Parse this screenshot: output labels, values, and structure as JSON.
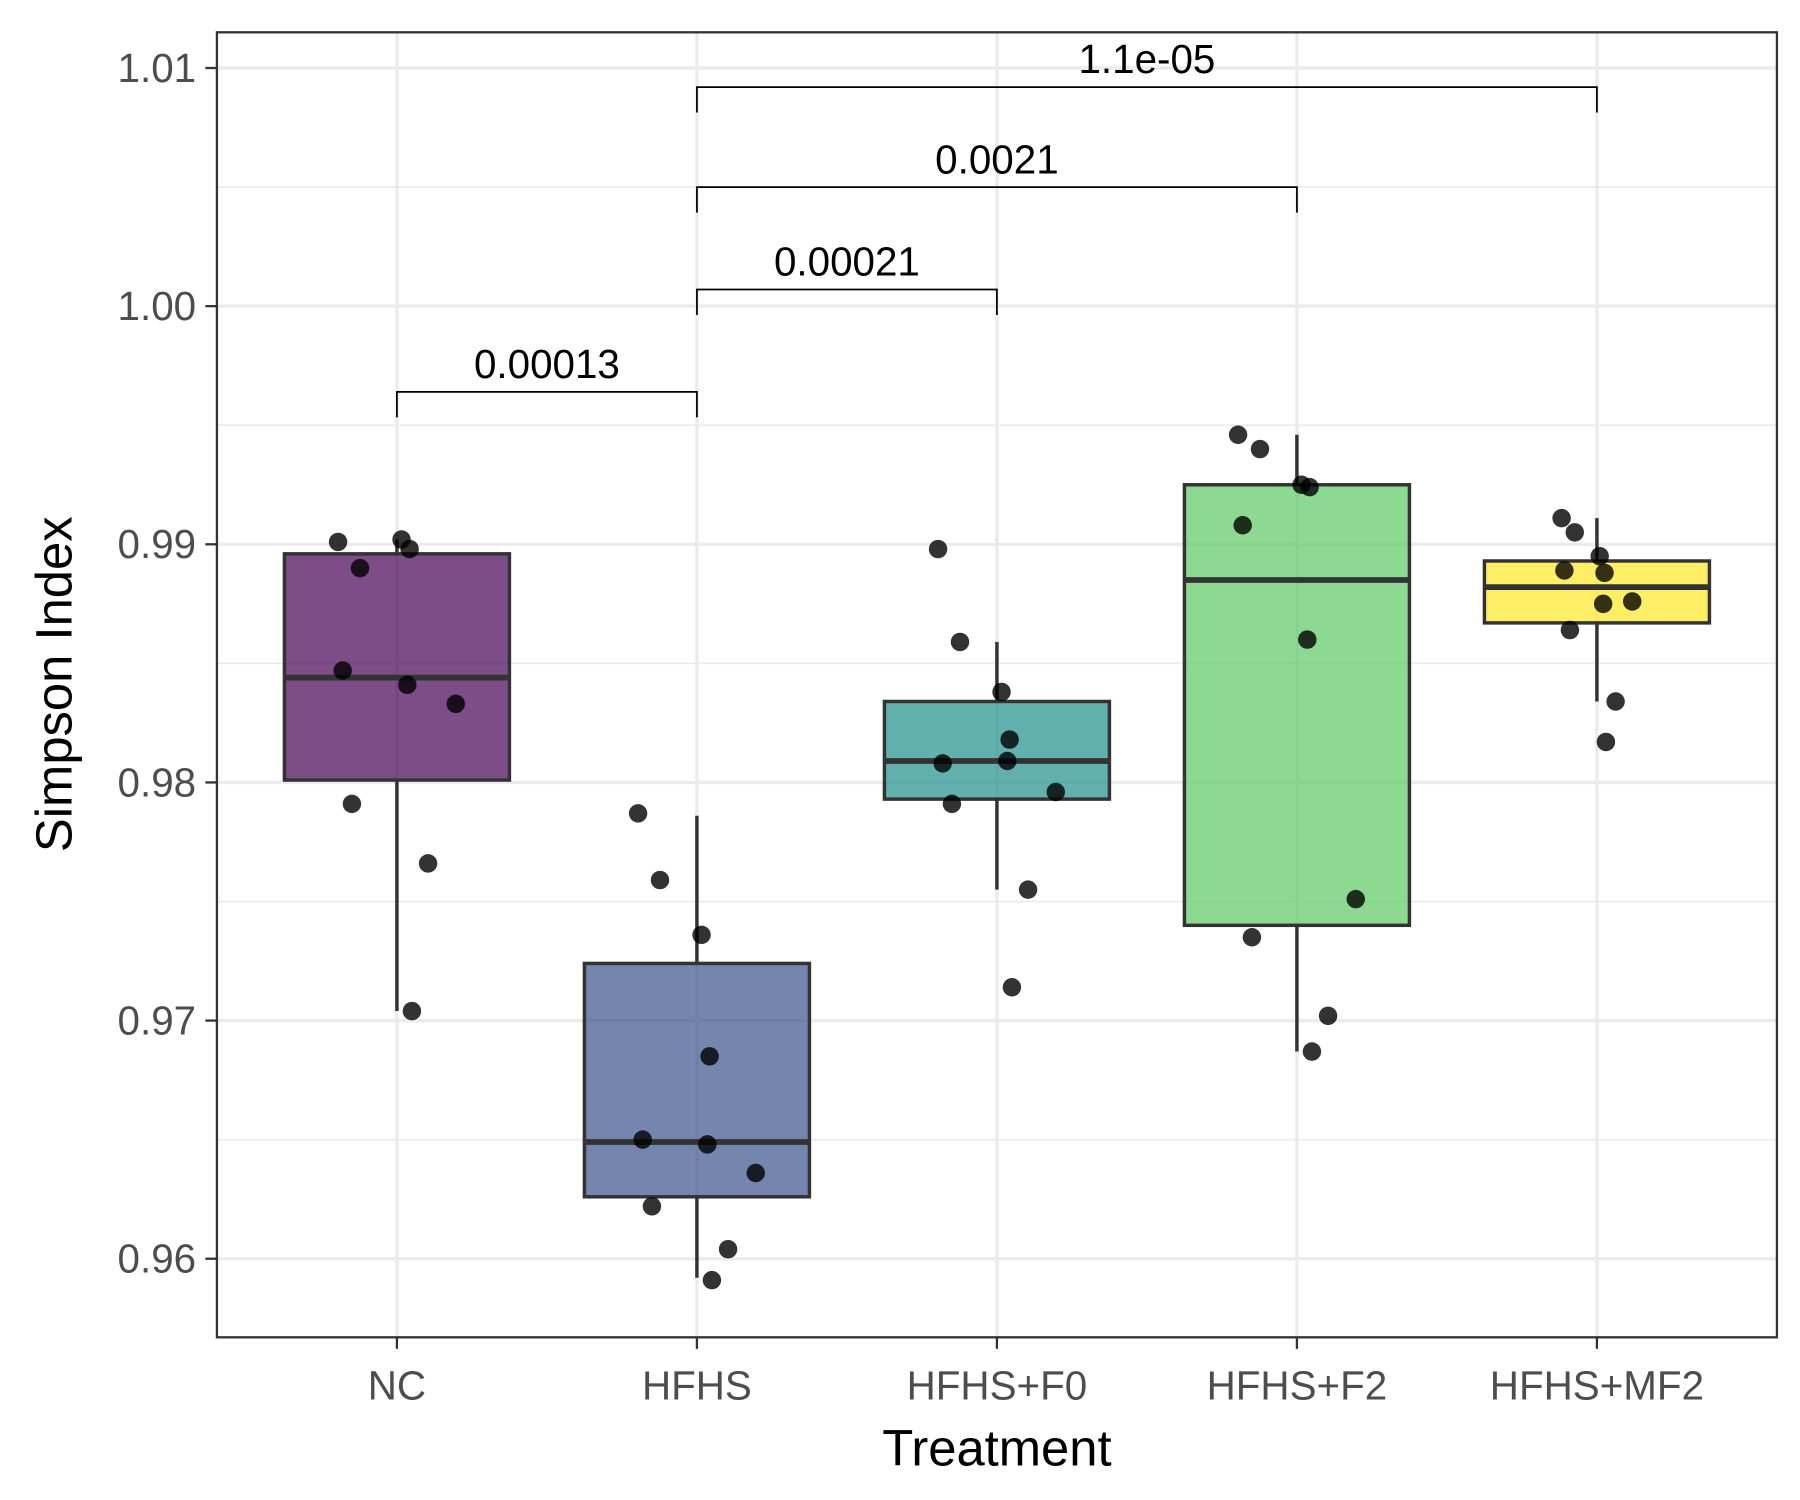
{
  "chart_data": {
    "type": "boxplot",
    "xlabel": "Treatment",
    "ylabel": "Simpson Index",
    "ylim": [
      0.9567,
      1.0115
    ],
    "yticks": [
      0.96,
      0.97,
      0.98,
      0.99,
      1.0,
      1.01
    ],
    "ytick_labels": [
      "0.96",
      "0.97",
      "0.98",
      "0.99",
      "1.00",
      "1.01"
    ],
    "grid": true,
    "categories": [
      "NC",
      "HFHS",
      "HFHS+F0",
      "HFHS+F2",
      "HFHS+MF2"
    ],
    "colors": [
      "#440154",
      "#3b528b",
      "#21908c",
      "#5ec962",
      "#fde725"
    ],
    "boxes": [
      {
        "group": "NC",
        "whisker_low": 0.9704,
        "q1": 0.9801,
        "median": 0.9844,
        "q3": 0.9896,
        "whisker_high": 0.9902,
        "points": [
          0.9901,
          0.989,
          0.9902,
          0.9898,
          0.9847,
          0.9841,
          0.9833,
          0.9791,
          0.9766,
          0.9704
        ]
      },
      {
        "group": "HFHS",
        "whisker_low": 0.9592,
        "q1": 0.9626,
        "median": 0.9649,
        "q3": 0.9724,
        "whisker_high": 0.9786,
        "points": [
          0.9787,
          0.9759,
          0.9736,
          0.9685,
          0.965,
          0.9648,
          0.9636,
          0.9622,
          0.9604,
          0.9591
        ]
      },
      {
        "group": "HFHS+F0",
        "whisker_low": 0.9755,
        "q1": 0.9793,
        "median": 0.9809,
        "q3": 0.9834,
        "whisker_high": 0.9859,
        "points": [
          0.9898,
          0.9859,
          0.9838,
          0.9818,
          0.9808,
          0.9809,
          0.9796,
          0.9791,
          0.9755,
          0.9714
        ]
      },
      {
        "group": "HFHS+F2",
        "whisker_low": 0.9687,
        "q1": 0.974,
        "median": 0.9885,
        "q3": 0.9925,
        "whisker_high": 0.9946,
        "points": [
          0.9946,
          0.994,
          0.9925,
          0.9924,
          0.9908,
          0.986,
          0.9751,
          0.9735,
          0.9702,
          0.9687
        ]
      },
      {
        "group": "HFHS+MF2",
        "whisker_low": 0.9834,
        "q1": 0.9867,
        "median": 0.9882,
        "q3": 0.9893,
        "whisker_high": 0.9911,
        "points": [
          0.9911,
          0.9905,
          0.9895,
          0.9888,
          0.9889,
          0.9875,
          0.9876,
          0.9864,
          0.9834,
          0.9817
        ]
      }
    ],
    "comparisons": [
      {
        "from": "NC",
        "to": "HFHS",
        "y": 0.9964,
        "label": "0.00013"
      },
      {
        "from": "HFHS",
        "to": "HFHS+F0",
        "y": 1.0007,
        "label": "0.00021"
      },
      {
        "from": "HFHS",
        "to": "HFHS+F2",
        "y": 1.005,
        "label": "0.0021"
      },
      {
        "from": "HFHS",
        "to": "HFHS+MF2",
        "y": 1.0092,
        "label": "1.1e-05"
      }
    ]
  }
}
